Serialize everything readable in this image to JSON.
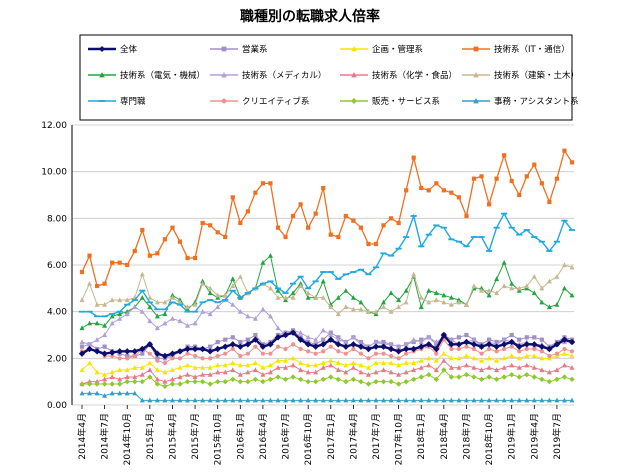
{
  "chart_data": {
    "type": "line",
    "title": "職種別の転職求人倍率",
    "ylim": [
      0,
      12
    ],
    "yticks": [
      "0.00",
      "2.00",
      "4.00",
      "6.00",
      "8.00",
      "10.00",
      "12.00"
    ],
    "xtick_labels": [
      "2014年4月",
      "2014年7月",
      "2014年10月",
      "2015年1月",
      "2015年4月",
      "2015年7月",
      "2015年10月",
      "2016年1月",
      "2016年4月",
      "2016年7月",
      "2016年10月",
      "2017年1月",
      "2017年4月",
      "2017年7月",
      "2017年10月",
      "2018年1月",
      "2018年4月",
      "2018年7月",
      "2018年10月",
      "2019年1月",
      "2019年4月",
      "2019年7月"
    ],
    "months_start": "2014年4月",
    "n_points": 66,
    "series": [
      {
        "name": "全体",
        "color": "#0d0d6e",
        "marker": "diamond",
        "width": 2.4,
        "values": [
          2.2,
          2.4,
          2.3,
          2.2,
          2.25,
          2.3,
          2.3,
          2.3,
          2.4,
          2.6,
          2.2,
          2.1,
          2.2,
          2.3,
          2.4,
          2.4,
          2.4,
          2.3,
          2.4,
          2.5,
          2.6,
          2.5,
          2.6,
          2.8,
          2.5,
          2.6,
          2.9,
          3.0,
          3.1,
          2.8,
          2.6,
          2.5,
          2.6,
          2.8,
          2.6,
          2.5,
          2.6,
          2.5,
          2.4,
          2.5,
          2.5,
          2.4,
          2.3,
          2.4,
          2.4,
          2.5,
          2.6,
          2.4,
          3.0,
          2.6,
          2.6,
          2.7,
          2.6,
          2.5,
          2.6,
          2.5,
          2.6,
          2.7,
          2.5,
          2.6,
          2.6,
          2.5,
          2.4,
          2.6,
          2.8,
          2.7
        ]
      },
      {
        "name": "営業系",
        "color": "#a090c8",
        "marker": "square",
        "width": 1,
        "values": [
          2.5,
          2.6,
          2.4,
          2.5,
          2.3,
          2.2,
          2.1,
          2.1,
          2.2,
          2.6,
          2.0,
          2.0,
          2.1,
          2.3,
          2.5,
          2.5,
          2.4,
          2.5,
          2.7,
          2.8,
          2.9,
          2.7,
          2.8,
          3.0,
          2.6,
          2.7,
          3.0,
          3.1,
          3.2,
          2.9,
          2.7,
          2.6,
          2.8,
          3.1,
          2.9,
          2.7,
          2.9,
          2.7,
          2.5,
          2.7,
          2.7,
          2.6,
          2.5,
          2.6,
          2.7,
          2.8,
          2.9,
          2.6,
          3.0,
          2.8,
          2.9,
          3.0,
          2.8,
          2.6,
          2.8,
          2.7,
          2.8,
          3.0,
          2.8,
          2.9,
          2.9,
          2.8,
          2.5,
          2.7,
          2.9,
          2.8
        ]
      },
      {
        "name": "企画・管理系",
        "color": "#f5e600",
        "marker": "triangle",
        "width": 1,
        "values": [
          1.5,
          1.8,
          1.4,
          1.3,
          1.4,
          1.5,
          1.5,
          1.6,
          1.6,
          1.8,
          1.5,
          1.4,
          1.5,
          1.6,
          1.7,
          1.6,
          1.6,
          1.6,
          1.7,
          1.7,
          1.8,
          1.7,
          1.7,
          1.8,
          1.6,
          1.7,
          1.9,
          1.9,
          2.0,
          1.8,
          1.7,
          1.7,
          1.8,
          1.9,
          1.8,
          1.7,
          1.8,
          1.7,
          1.6,
          1.8,
          1.8,
          1.8,
          1.7,
          1.8,
          1.8,
          1.9,
          2.0,
          1.9,
          2.2,
          2.0,
          2.0,
          2.1,
          2.0,
          1.9,
          2.0,
          1.9,
          2.0,
          2.1,
          2.0,
          2.1,
          2.1,
          2.0,
          2.0,
          2.1,
          2.2,
          2.1
        ]
      },
      {
        "name": "技術系（IT・通信）",
        "color": "#f07020",
        "marker": "square",
        "width": 1.3,
        "values": [
          5.7,
          6.4,
          5.1,
          5.2,
          6.1,
          6.1,
          6.0,
          6.6,
          7.5,
          6.4,
          6.5,
          7.1,
          7.6,
          7.0,
          6.3,
          6.3,
          7.8,
          7.7,
          7.4,
          7.2,
          8.9,
          7.8,
          8.3,
          9.1,
          9.5,
          9.5,
          7.6,
          7.2,
          8.1,
          8.6,
          7.6,
          8.2,
          9.3,
          7.3,
          7.2,
          8.1,
          7.9,
          7.6,
          6.9,
          6.9,
          7.7,
          8.0,
          7.8,
          9.2,
          10.6,
          9.3,
          9.2,
          9.5,
          9.2,
          9.1,
          8.9,
          8.1,
          9.7,
          9.8,
          8.6,
          9.7,
          10.7,
          9.6,
          9.0,
          9.8,
          10.3,
          9.5,
          8.7,
          9.7,
          10.9,
          10.4
        ]
      },
      {
        "name": "技術系（電気・機械）",
        "color": "#22a540",
        "marker": "triangle",
        "width": 1,
        "values": [
          3.3,
          3.5,
          3.5,
          3.4,
          3.8,
          3.9,
          4.0,
          4.2,
          4.6,
          4.2,
          3.8,
          3.9,
          4.7,
          4.5,
          4.1,
          4.4,
          5.3,
          4.8,
          4.6,
          4.7,
          5.4,
          4.6,
          4.8,
          5.0,
          6.1,
          6.4,
          4.9,
          4.5,
          4.8,
          5.2,
          4.6,
          4.6,
          5.3,
          4.3,
          4.6,
          4.9,
          4.6,
          4.4,
          4.0,
          3.9,
          4.4,
          4.8,
          4.5,
          4.9,
          5.5,
          4.2,
          4.9,
          4.8,
          4.7,
          4.6,
          4.5,
          4.3,
          5.0,
          5.0,
          4.7,
          5.4,
          6.1,
          5.2,
          4.9,
          5.0,
          4.8,
          4.4,
          4.2,
          4.3,
          5.0,
          4.7
        ]
      },
      {
        "name": "技術系（メディカル）",
        "color": "#b0a0d8",
        "marker": "triangle",
        "width": 1,
        "values": [
          2.7,
          2.6,
          2.8,
          3.0,
          3.5,
          3.7,
          3.9,
          4.2,
          4.0,
          3.6,
          3.3,
          3.5,
          3.7,
          3.6,
          3.4,
          3.5,
          4.0,
          3.9,
          4.2,
          4.5,
          4.3,
          4.0,
          3.8,
          3.7,
          4.1,
          3.8,
          3.3,
          3.0,
          3.2,
          3.1,
          2.9,
          2.8,
          3.2,
          3.0,
          2.8,
          2.7,
          2.9,
          2.6,
          2.5,
          2.7,
          2.6,
          2.6,
          2.5,
          2.6,
          2.8,
          2.7,
          2.9,
          2.7,
          2.9,
          2.8,
          2.6,
          2.7,
          2.8,
          2.5,
          2.7,
          2.6,
          2.8,
          2.7,
          2.6,
          2.7,
          2.5,
          2.6,
          2.4,
          2.6,
          2.7,
          2.7
        ]
      },
      {
        "name": "技術系（化学・食品）",
        "color": "#e87a88",
        "marker": "triangle",
        "width": 1,
        "values": [
          0.9,
          1.0,
          1.0,
          1.1,
          1.2,
          1.1,
          1.2,
          1.2,
          1.3,
          1.5,
          1.1,
          1.0,
          1.1,
          1.2,
          1.3,
          1.2,
          1.3,
          1.3,
          1.4,
          1.4,
          1.5,
          1.3,
          1.4,
          1.5,
          1.3,
          1.4,
          1.6,
          1.6,
          1.7,
          1.5,
          1.4,
          1.4,
          1.6,
          1.7,
          1.5,
          1.4,
          1.6,
          1.4,
          1.3,
          1.4,
          1.5,
          1.4,
          1.3,
          1.4,
          1.5,
          1.6,
          1.7,
          1.5,
          1.9,
          1.6,
          1.6,
          1.7,
          1.6,
          1.5,
          1.6,
          1.5,
          1.6,
          1.7,
          1.6,
          1.7,
          1.6,
          1.5,
          1.4,
          1.5,
          1.7,
          1.6
        ]
      },
      {
        "name": "技術系（建築・土木）",
        "color": "#c8b890",
        "marker": "triangle",
        "width": 1,
        "values": [
          4.5,
          5.2,
          4.3,
          4.3,
          4.5,
          4.5,
          4.5,
          4.6,
          5.6,
          4.6,
          4.4,
          4.4,
          4.6,
          4.4,
          4.2,
          4.3,
          5.2,
          5.0,
          4.7,
          4.7,
          5.1,
          5.5,
          4.8,
          5.0,
          5.2,
          5.0,
          4.6,
          4.6,
          4.6,
          5.1,
          4.8,
          4.6,
          4.6,
          4.2,
          3.9,
          4.2,
          4.1,
          4.1,
          4.0,
          4.0,
          4.2,
          4.0,
          4.2,
          4.4,
          5.6,
          4.6,
          4.4,
          4.5,
          4.4,
          4.3,
          4.4,
          4.3,
          5.1,
          4.9,
          4.9,
          4.8,
          5.1,
          5.0,
          5.0,
          5.1,
          5.5,
          5.0,
          5.3,
          5.5,
          6.0,
          5.9
        ]
      },
      {
        "name": "専門職",
        "color": "#20a8e0",
        "marker": "dash",
        "width": 1.4,
        "values": [
          4.0,
          4.0,
          3.8,
          3.8,
          3.9,
          4.0,
          4.3,
          4.5,
          4.9,
          4.4,
          4.1,
          4.1,
          4.4,
          4.3,
          4.0,
          4.0,
          4.4,
          4.5,
          4.4,
          4.5,
          4.9,
          4.6,
          4.8,
          5.0,
          5.2,
          5.3,
          5.0,
          4.8,
          5.2,
          5.5,
          5.0,
          5.3,
          5.7,
          5.7,
          5.4,
          5.6,
          5.7,
          5.8,
          5.6,
          5.9,
          6.5,
          6.4,
          6.7,
          7.2,
          8.1,
          6.8,
          7.3,
          7.7,
          7.6,
          7.1,
          7.0,
          6.8,
          7.2,
          7.2,
          6.6,
          7.6,
          8.2,
          7.6,
          7.3,
          7.5,
          7.2,
          7.0,
          6.6,
          7.0,
          7.9,
          7.5
        ]
      },
      {
        "name": "クリエイティブ系",
        "color": "#f09090",
        "marker": "circle",
        "width": 1,
        "values": [
          2.3,
          2.4,
          2.3,
          2.1,
          2.1,
          2.0,
          2.0,
          2.1,
          2.4,
          2.2,
          1.9,
          1.8,
          2.0,
          2.0,
          2.2,
          2.1,
          2.0,
          2.0,
          2.1,
          2.2,
          2.4,
          2.1,
          2.2,
          2.5,
          2.2,
          2.2,
          2.5,
          2.4,
          2.6,
          2.4,
          2.3,
          2.2,
          2.3,
          2.5,
          2.3,
          2.2,
          2.4,
          2.2,
          2.0,
          2.2,
          2.2,
          2.1,
          2.0,
          2.2,
          2.3,
          2.4,
          2.5,
          2.2,
          2.8,
          2.4,
          2.4,
          2.5,
          2.4,
          2.2,
          2.4,
          2.3,
          2.4,
          2.5,
          2.3,
          2.4,
          2.4,
          2.3,
          2.1,
          2.2,
          2.4,
          2.3
        ]
      },
      {
        "name": "販売・サービス系",
        "color": "#90c830",
        "marker": "diamond",
        "width": 1,
        "values": [
          0.9,
          0.9,
          0.9,
          0.9,
          0.9,
          0.9,
          1.0,
          1.0,
          1.0,
          1.2,
          0.9,
          0.8,
          0.9,
          0.9,
          1.0,
          1.0,
          1.0,
          0.9,
          1.0,
          1.0,
          1.1,
          1.0,
          1.0,
          1.1,
          1.0,
          1.1,
          1.2,
          1.1,
          1.2,
          1.1,
          1.0,
          1.0,
          1.1,
          1.2,
          1.1,
          1.0,
          1.1,
          1.0,
          0.9,
          1.0,
          1.0,
          1.0,
          0.9,
          1.0,
          1.1,
          1.2,
          1.3,
          1.1,
          1.5,
          1.2,
          1.2,
          1.3,
          1.2,
          1.1,
          1.2,
          1.1,
          1.2,
          1.3,
          1.2,
          1.3,
          1.2,
          1.1,
          1.0,
          1.1,
          1.2,
          1.1
        ]
      },
      {
        "name": "事務・アシスタント系",
        "color": "#30a0c8",
        "marker": "triangle",
        "width": 1,
        "values": [
          0.5,
          0.5,
          0.5,
          0.4,
          0.5,
          0.5,
          0.5,
          0.5,
          0.2,
          0.2,
          0.2,
          0.2,
          0.2,
          0.2,
          0.2,
          0.2,
          0.2,
          0.2,
          0.2,
          0.2,
          0.2,
          0.2,
          0.2,
          0.2,
          0.2,
          0.2,
          0.2,
          0.2,
          0.2,
          0.2,
          0.2,
          0.2,
          0.2,
          0.2,
          0.2,
          0.2,
          0.2,
          0.2,
          0.2,
          0.2,
          0.2,
          0.2,
          0.2,
          0.2,
          0.2,
          0.2,
          0.2,
          0.2,
          0.2,
          0.2,
          0.2,
          0.2,
          0.2,
          0.2,
          0.2,
          0.2,
          0.2,
          0.2,
          0.2,
          0.2,
          0.2,
          0.2,
          0.2,
          0.2,
          0.2,
          0.2
        ]
      }
    ]
  }
}
